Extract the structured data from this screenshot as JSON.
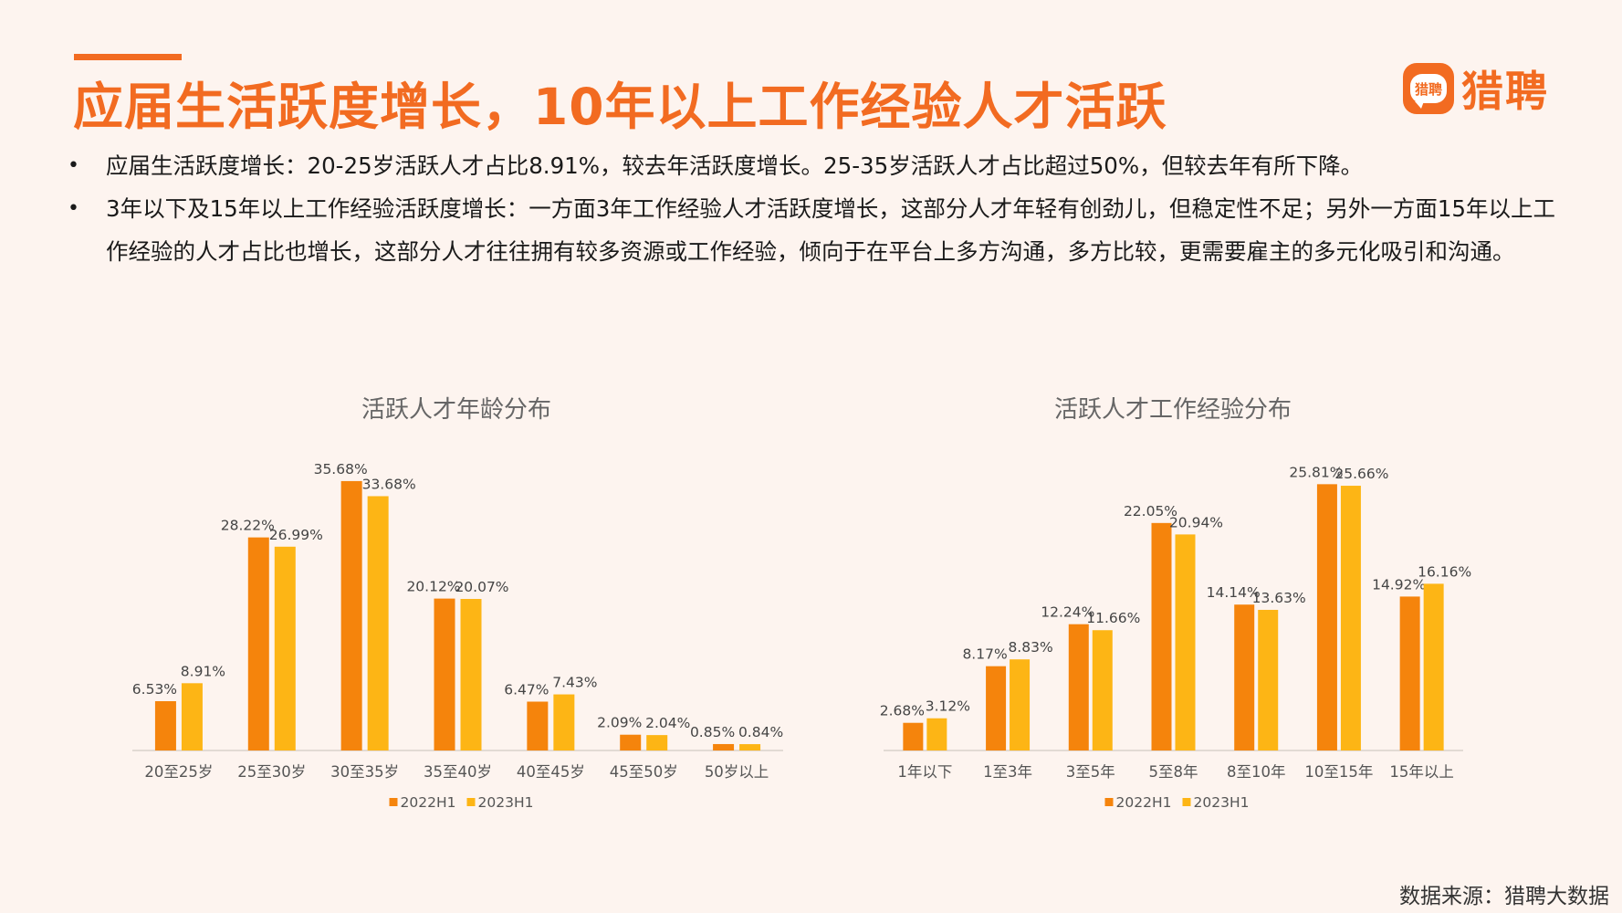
{
  "header": {
    "title": "应届生活跃度增长，10年以上工作经验人才活跃",
    "logo_icon_text": "猎聘",
    "logo_text": "猎聘"
  },
  "bullets": [
    "应届生活跃度增长：20-25岁活跃人才占比8.91%，较去年活跃度增长。25-35岁活跃人才占比超过50%，但较去年有所下降。",
    "3年以下及15年以上工作经验活跃度增长：一方面3年工作经验人才活跃度增长，这部分人才年轻有创劲儿，但稳定性不足；另外一方面15年以上工作经验的人才占比也增长，这部分人才往往拥有较多资源或工作经验，倾向于在平台上多方沟通，多方比较，更需要雇主的多元化吸引和沟通。"
  ],
  "colors": {
    "accent": "#f26b21",
    "series_2022": "#f5840c",
    "series_2023": "#fdb515"
  },
  "chart_data": [
    {
      "type": "bar",
      "title": "活跃人才年龄分布",
      "categories": [
        "20至25岁",
        "25至30岁",
        "30至35岁",
        "35至40岁",
        "40至45岁",
        "45至50岁",
        "50岁以上"
      ],
      "series": [
        {
          "name": "2022H1",
          "values": [
            6.53,
            28.22,
            35.68,
            20.12,
            6.47,
            2.09,
            0.85
          ],
          "labels": [
            "6.53%",
            "28.22%",
            "35.68%",
            "20.12%",
            "6.47%",
            "2.09%",
            "0.85%"
          ]
        },
        {
          "name": "2023H1",
          "values": [
            8.91,
            26.99,
            33.68,
            20.07,
            7.43,
            2.04,
            0.84
          ],
          "labels": [
            "8.91%",
            "26.99%",
            "33.68%",
            "20.07%",
            "7.43%",
            "2.04%",
            "0.84%"
          ]
        }
      ],
      "ylim": [
        0,
        40
      ],
      "legend": "bottom"
    },
    {
      "type": "bar",
      "title": "活跃人才工作经验分布",
      "categories": [
        "1年以下",
        "1至3年",
        "3至5年",
        "5至8年",
        "8至10年",
        "10至15年",
        "15年以上"
      ],
      "series": [
        {
          "name": "2022H1",
          "values": [
            2.68,
            8.17,
            12.24,
            22.05,
            14.14,
            25.81,
            14.92
          ],
          "labels": [
            "2.68%",
            "8.17%",
            "12.24%",
            "22.05%",
            "14.14%",
            "25.81%",
            "14.92%"
          ]
        },
        {
          "name": "2023H1",
          "values": [
            3.12,
            8.83,
            11.66,
            20.94,
            13.63,
            25.66,
            16.16
          ],
          "labels": [
            "3.12%",
            "8.83%",
            "11.66%",
            "20.94%",
            "13.63%",
            "25.66%",
            "16.16%"
          ]
        }
      ],
      "ylim": [
        0,
        30
      ],
      "legend": "bottom"
    }
  ],
  "footer": {
    "source": "数据来源：猎聘大数据"
  }
}
